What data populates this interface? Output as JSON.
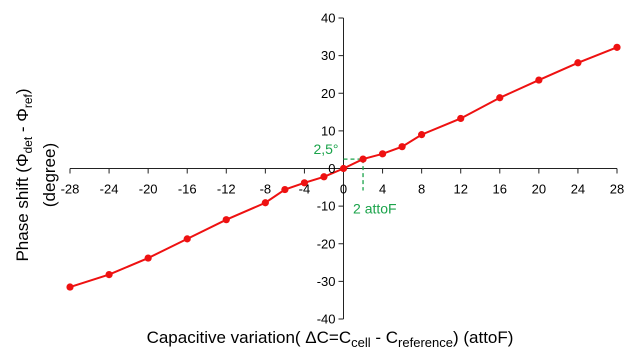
{
  "chart_data": {
    "type": "line",
    "title": "",
    "xlabel": {
      "prefix": "Capacitive variation( ΔC=C",
      "sub1": "cell",
      "mid": " - C",
      "sub2": "reference",
      "suffix": ") (attoF)"
    },
    "ylabel": {
      "line1_prefix": "Phase shift (Φ",
      "line1_sub1": "det",
      "line1_mid": " - Φ",
      "line1_sub2": "ref",
      "line1_suffix": ")",
      "line2": "(degree)"
    },
    "xlim": [
      -28,
      28
    ],
    "ylim": [
      -40,
      40
    ],
    "xticks": [
      "-28",
      "-24",
      "-20",
      "-16",
      "-12",
      "-8",
      "-4",
      "0",
      "4",
      "8",
      "12",
      "16",
      "20",
      "24",
      "28"
    ],
    "yticks": [
      "-40",
      "-30",
      "-20",
      "-10",
      "0",
      "10",
      "20",
      "30",
      "40"
    ],
    "xtick_values": [
      -28,
      -24,
      -20,
      -16,
      -12,
      -8,
      -4,
      0,
      4,
      8,
      12,
      16,
      20,
      24,
      28
    ],
    "ytick_values": [
      -40,
      -30,
      -20,
      -10,
      0,
      10,
      20,
      30,
      40
    ],
    "grid": false,
    "series": [
      {
        "color": "#ee1111",
        "points": [
          {
            "x": -28,
            "y": -31.5
          },
          {
            "x": -24,
            "y": -28.2
          },
          {
            "x": -20,
            "y": -23.8
          },
          {
            "x": -16,
            "y": -18.7
          },
          {
            "x": -12,
            "y": -13.6
          },
          {
            "x": -8,
            "y": -9.1
          },
          {
            "x": -6,
            "y": -5.6
          },
          {
            "x": -4,
            "y": -3.8
          },
          {
            "x": -2,
            "y": -2.2
          },
          {
            "x": 0,
            "y": 0
          },
          {
            "x": 2,
            "y": 2.5
          },
          {
            "x": 4,
            "y": 3.9
          },
          {
            "x": 6,
            "y": 5.8
          },
          {
            "x": 8,
            "y": 9.0
          },
          {
            "x": 12,
            "y": 13.3
          },
          {
            "x": 16,
            "y": 18.8
          },
          {
            "x": 20,
            "y": 23.5
          },
          {
            "x": 24,
            "y": 28.1
          },
          {
            "x": 28,
            "y": 32.2
          }
        ]
      }
    ],
    "annotations": [
      {
        "text": "2,5°",
        "x": 2,
        "y": 2.5,
        "color": "#1aa34a"
      },
      {
        "text": "2 attoF",
        "x": 2,
        "y": 2.5,
        "color": "#1aa34a"
      }
    ]
  }
}
